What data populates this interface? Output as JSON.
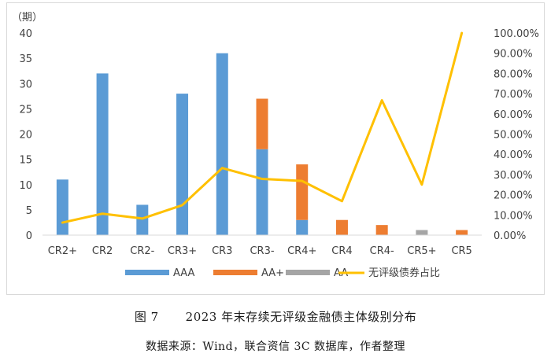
{
  "chart_data": {
    "type": "bar",
    "stacked": true,
    "y_unit_label": "（期）",
    "categories": [
      "CR2+",
      "CR2",
      "CR2-",
      "CR3+",
      "CR3",
      "CR3-",
      "CR4+",
      "CR4",
      "CR4-",
      "CR5+",
      "CR5"
    ],
    "series": [
      {
        "name": "AAA",
        "type": "bar",
        "color": "#5b9bd5",
        "values": [
          11,
          32,
          6,
          28,
          36,
          17,
          3,
          0,
          0,
          0,
          0
        ]
      },
      {
        "name": "AA+",
        "type": "bar",
        "color": "#ed7d31",
        "values": [
          0,
          0,
          0,
          0,
          0,
          10,
          11,
          3,
          2,
          0,
          1
        ]
      },
      {
        "name": "AA",
        "type": "bar",
        "color": "#a5a5a5",
        "values": [
          0,
          0,
          0,
          0,
          0,
          0,
          0,
          0,
          0,
          1,
          0
        ]
      },
      {
        "name": "无评级债券占比",
        "type": "line",
        "axis": "right",
        "color": "#ffc000",
        "values": [
          6.2,
          10.6,
          8.2,
          14.8,
          33.2,
          27.8,
          26.8,
          16.8,
          66.7,
          25.0,
          100.0
        ]
      }
    ],
    "ylim": [
      0,
      40
    ],
    "yticks": [
      "0",
      "5",
      "10",
      "15",
      "20",
      "25",
      "30",
      "35",
      "40"
    ],
    "y2lim": [
      0,
      100
    ],
    "y2ticks": [
      "0.00%",
      "10.00%",
      "20.00%",
      "30.00%",
      "40.00%",
      "50.00%",
      "60.00%",
      "70.00%",
      "80.00%",
      "90.00%",
      "100.00%"
    ],
    "legend_position": "bottom",
    "grid": false
  },
  "caption": {
    "figure_no": "图 7",
    "title": "2023 年末存续无评级金融债主体级别分布"
  },
  "source": "数据来源：Wind，联合资信 3C 数据库，作者整理"
}
